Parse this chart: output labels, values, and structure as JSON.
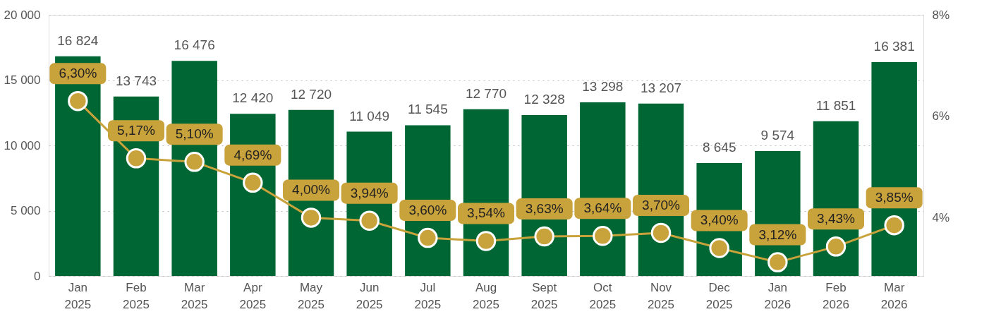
{
  "chart_data": {
    "type": "bar",
    "categories": [
      "Jan 2025",
      "Feb 2025",
      "Mar 2025",
      "Apr 2025",
      "May 2025",
      "Jun 2025",
      "Jul 2025",
      "Aug 2025",
      "Sept 2025",
      "Oct 2025",
      "Nov 2025",
      "Dec 2025",
      "Jan 2026",
      "Feb 2026",
      "Mar 2026"
    ],
    "series": [
      {
        "color": "#006633",
        "values": [
          16824,
          13743,
          16476,
          12420,
          12720,
          11049,
          11545,
          12770,
          12328,
          13298,
          13207,
          8645,
          9574,
          11851,
          16381
        ],
        "value_labels": [
          "16 824",
          "13 743",
          "16 476",
          "12 420",
          "12 720",
          "11 049",
          "11 545",
          "12 770",
          "12 328",
          "13 298",
          "13 207",
          "8 645",
          "9 574",
          "11 851",
          "16 381"
        ]
      },
      {
        "type": "line",
        "axis": "y2",
        "color": "#c8a23a",
        "values": [
          6.3,
          5.17,
          5.1,
          4.69,
          4.0,
          3.94,
          3.6,
          3.54,
          3.63,
          3.64,
          3.7,
          3.4,
          3.12,
          3.43,
          3.85
        ],
        "value_labels": [
          "6,30%",
          "5,17%",
          "5,10%",
          "4,69%",
          "4,00%",
          "3,94%",
          "3,60%",
          "3,54%",
          "3,63%",
          "3,64%",
          "3,70%",
          "3,40%",
          "3,12%",
          "3,43%",
          "3,85%"
        ]
      }
    ],
    "ylim": [
      0,
      20000
    ],
    "yticks": [
      {
        "value": 0,
        "label": "0"
      },
      {
        "value": 5000,
        "label": "5 000"
      },
      {
        "value": 10000,
        "label": "10 000"
      },
      {
        "value": 15000,
        "label": "15 000"
      },
      {
        "value": 20000,
        "label": "20 000"
      }
    ],
    "y2lim": [
      2.85,
      8
    ],
    "y2ticks": [
      {
        "value": 4,
        "label": "4%"
      },
      {
        "value": 6,
        "label": "6%"
      },
      {
        "value": 8,
        "label": "8%"
      }
    ],
    "grid": "y",
    "marker": "circle"
  }
}
